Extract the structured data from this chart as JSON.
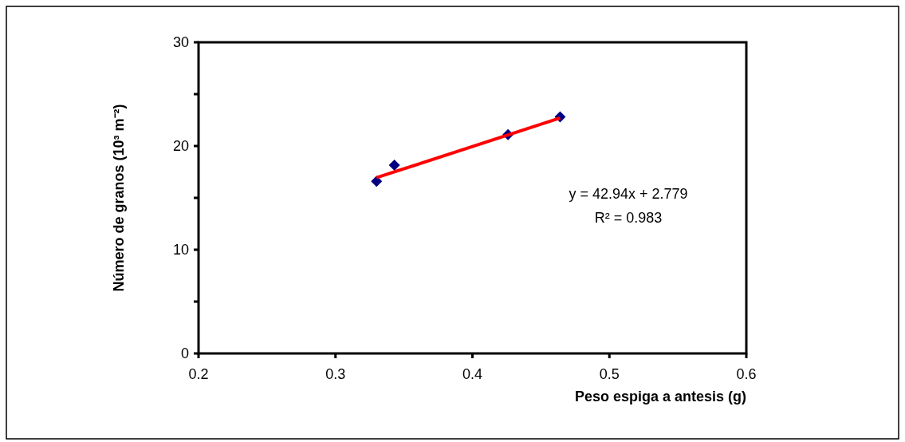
{
  "chart_data": {
    "type": "scatter",
    "xlabel": "Peso espiga a antesis (g)",
    "ylabel": "Número de granos  (10³ m⁻²)",
    "xlim": [
      0.2,
      0.6
    ],
    "xticks": [
      0.2,
      0.3,
      0.4,
      0.5,
      0.6
    ],
    "ylim": [
      0,
      30
    ],
    "yticks": [
      0,
      {
        "value": 5,
        "label": null
      },
      10,
      {
        "value": 15,
        "label": null
      },
      20,
      {
        "value": 25,
        "label": null
      },
      30
    ],
    "grid": false,
    "marker": "diamond",
    "series": [
      {
        "color": "#000080",
        "x": [
          0.33,
          0.343,
          0.426,
          0.464
        ],
        "values": [
          16.6,
          18.15,
          21.1,
          22.8
        ]
      },
      {
        "type": "line",
        "color": "#ff0000",
        "marker": "none",
        "line_style": "solid",
        "x": [
          0.33,
          0.464
        ],
        "values": [
          16.95,
          22.7
        ]
      }
    ],
    "annotations": [
      "y = 42.94x  + 2.779",
      "R² = 0.983"
    ]
  }
}
